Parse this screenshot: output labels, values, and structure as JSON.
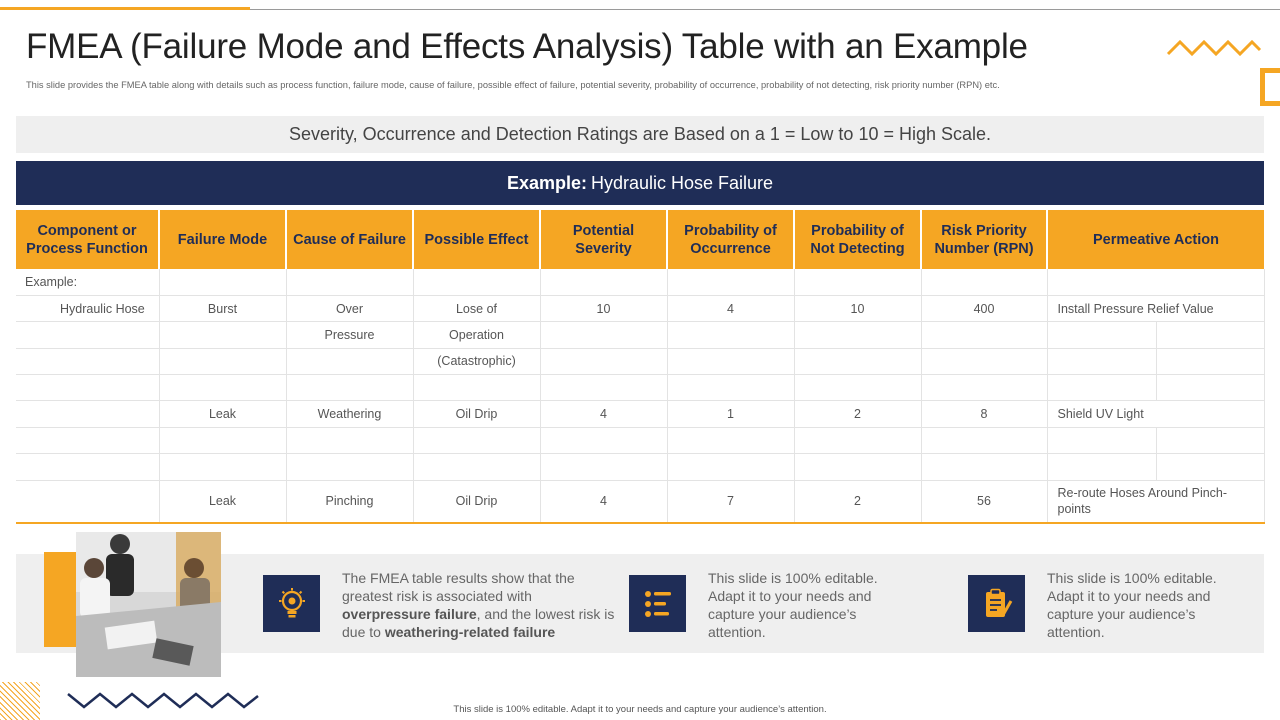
{
  "header": {
    "title": "FMEA (Failure Mode and Effects Analysis) Table with an Example",
    "subtitle": "This slide provides the FMEA table along with details such as process function, failure mode, cause of failure, possible effect of failure, potential severity, probability of occurrence, probability of not detecting, risk priority number (RPN) etc."
  },
  "scale_note": "Severity, Occurrence and Detection Ratings are Based on a 1 = Low to 10 = High Scale.",
  "example_banner": {
    "label": "Example:",
    "value": "Hydraulic Hose Failure"
  },
  "table": {
    "headers": [
      "Component or Process Function",
      "Failure Mode",
      "Cause of Failure",
      "Possible Effect",
      "Potential Severity",
      "Probability of Occurrence",
      "Probability of Not Detecting",
      "Risk Priority Number (RPN)",
      "Permeative Action"
    ],
    "example_label": "Example:",
    "component": "Hydraulic Hose",
    "rows": [
      {
        "failure_mode": "Burst",
        "cause": [
          "Over",
          "Pressure"
        ],
        "effect": [
          "Lose of",
          "Operation",
          "(Catastrophic)"
        ],
        "severity": "10",
        "occurrence": "4",
        "detection": "10",
        "rpn": "400",
        "action": "Install Pressure Relief Value"
      },
      {
        "failure_mode": "Leak",
        "cause": [
          "Weathering"
        ],
        "effect": [
          "Oil Drip"
        ],
        "severity": "4",
        "occurrence": "1",
        "detection": "2",
        "rpn": "8",
        "action": "Shield UV Light"
      },
      {
        "failure_mode": "Leak",
        "cause": [
          "Pinching"
        ],
        "effect": [
          "Oil Drip"
        ],
        "severity": "4",
        "occurrence": "7",
        "detection": "2",
        "rpn": "56",
        "action": "Re-route Hoses Around Pinch-points"
      }
    ]
  },
  "panel": {
    "result": {
      "before": "The FMEA table results show that the greatest risk is associated with ",
      "bold1": "overpressure failure",
      "middle": ", and the lowest risk is due to ",
      "bold2": "weathering-related failure"
    },
    "note2": "This slide is 100% editable. Adapt it to your needs and capture your audience’s attention.",
    "note3": "This slide is 100% editable. Adapt it to your needs and capture your audience’s attention.",
    "icons": [
      "lightbulb-gear-icon",
      "checklist-icon",
      "clipboard-pen-icon"
    ]
  },
  "footer": "This slide is 100% editable. Adapt it to your needs and capture your audience’s attention.",
  "colors": {
    "accent": "#f5a623",
    "navy": "#1f2d57",
    "panel": "#efefef"
  }
}
